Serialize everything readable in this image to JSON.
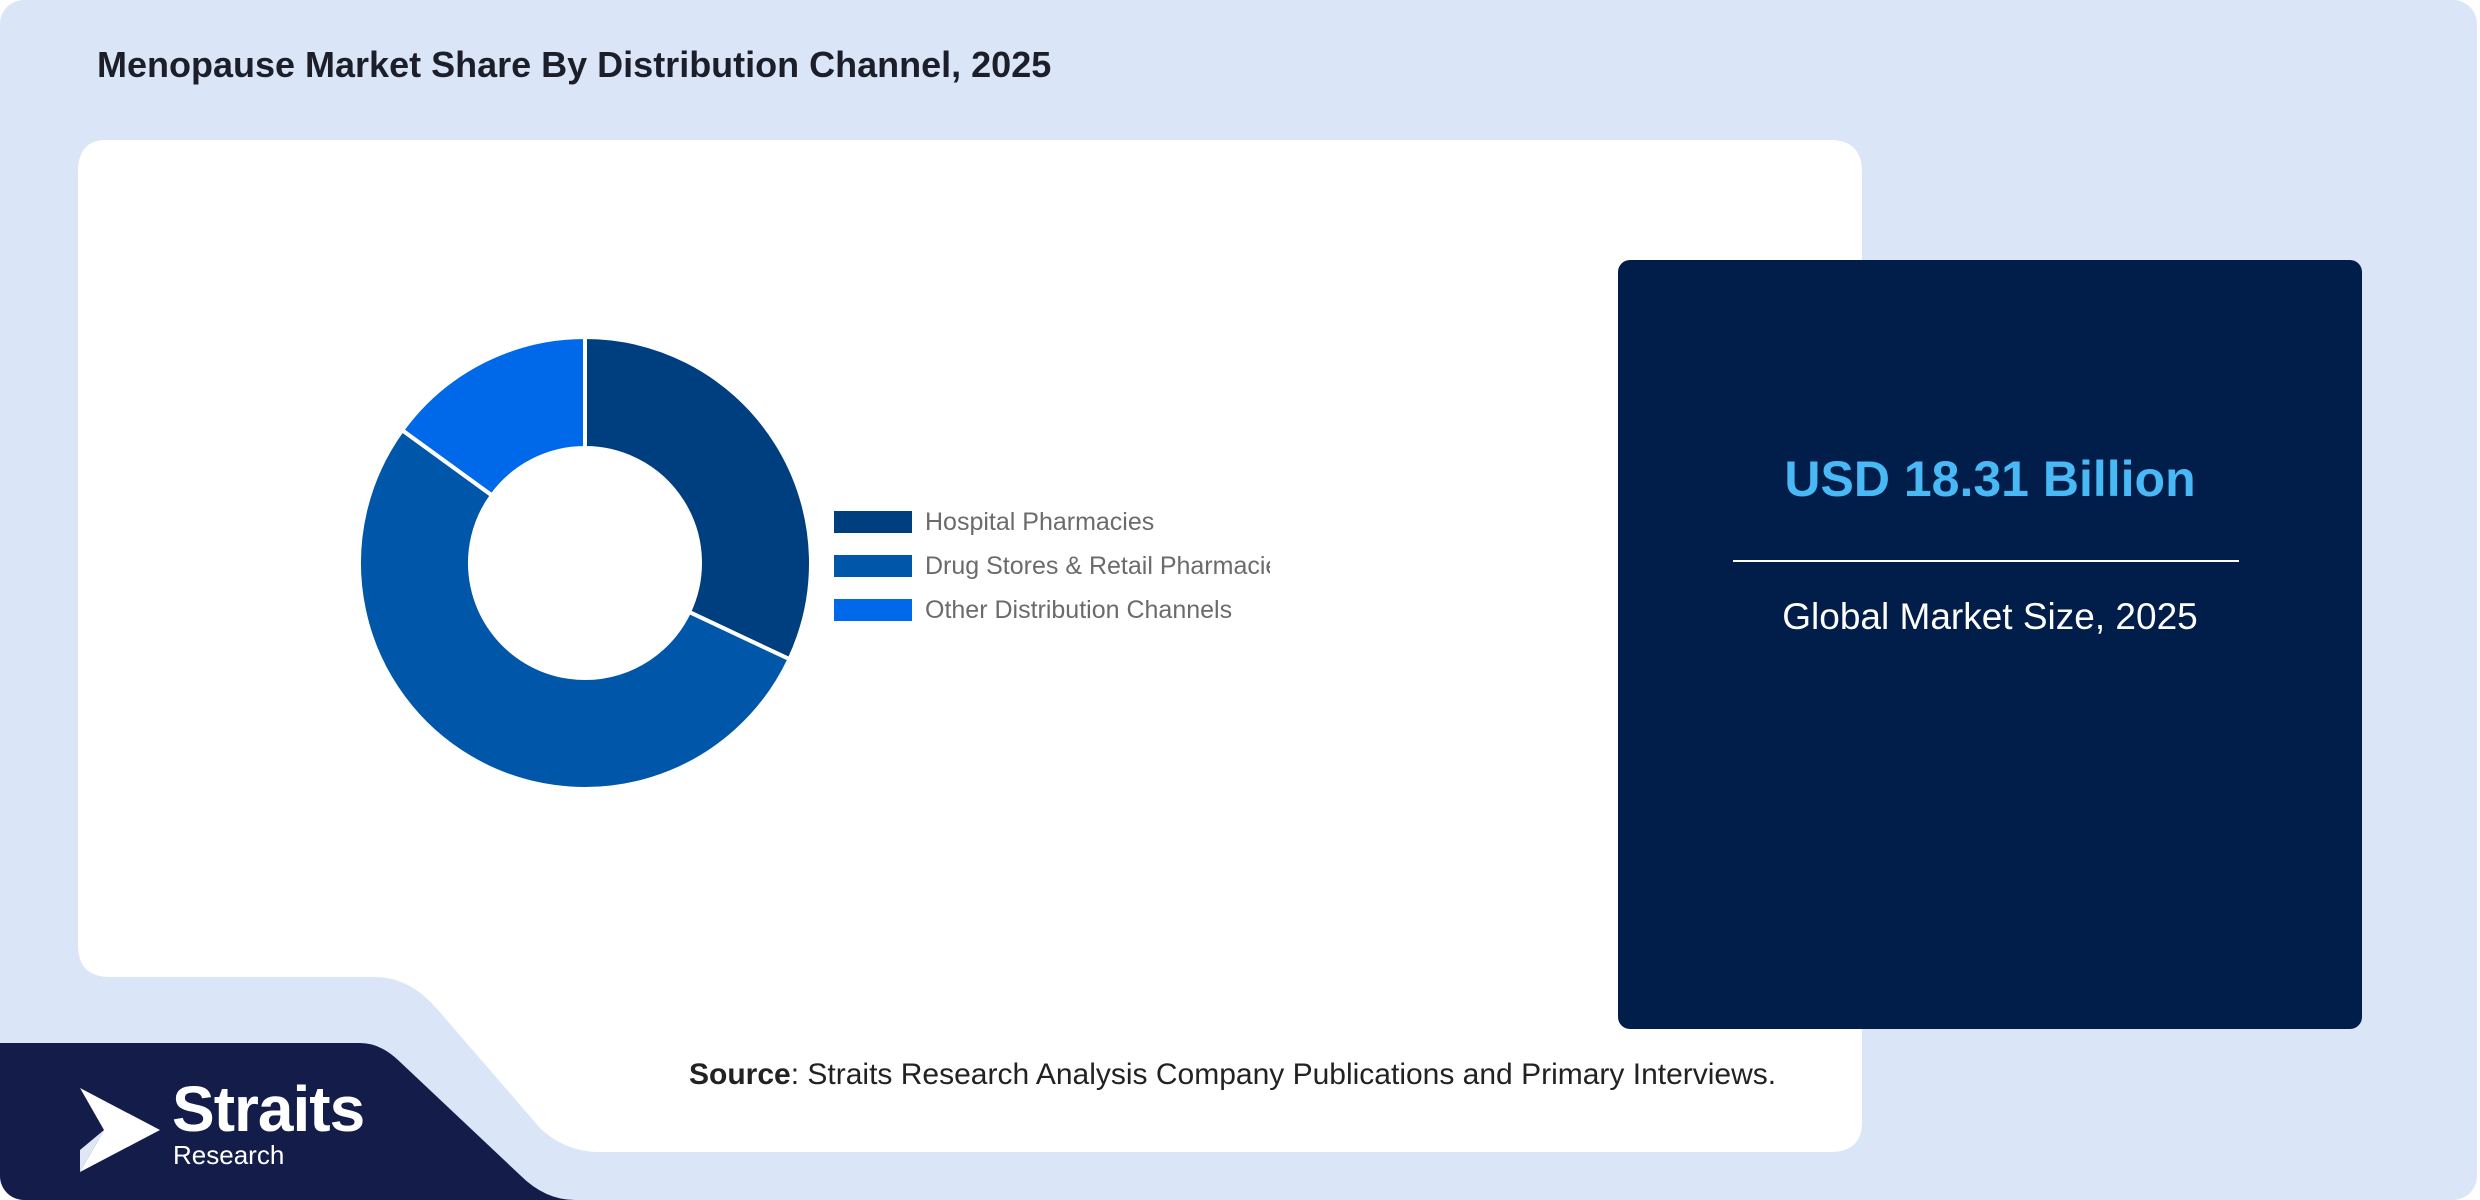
{
  "header": {
    "title": "Menopause Market Share By Distribution Channel, 2025"
  },
  "chart_data": {
    "type": "pie",
    "variant": "donut",
    "categories": [
      "Hospital Pharmacies",
      "Drug Stores & Retail Pharmacies",
      "Other Distribution Channels"
    ],
    "values": [
      32,
      53,
      15
    ],
    "colors": [
      "#003f7f",
      "#0057a9",
      "#0069e9"
    ],
    "legend_labels": [
      "Hospital Pharmacies",
      "Drug Stores & Retail Pharmacie",
      "Other Distribution Channels"
    ],
    "legend_position": "right"
  },
  "stat_card": {
    "value": "USD 18.31 Billion",
    "label": "Global Market Size, 2025",
    "value_color": "#49b9f6",
    "background": "#001e49"
  },
  "footer": {
    "source_label": "Source",
    "source_text": ": Straits Research Analysis Company Publications and Primary Interviews."
  },
  "logo": {
    "brand": "Straits",
    "sub": "Research",
    "icon": "straits-arrow-logo-icon"
  }
}
